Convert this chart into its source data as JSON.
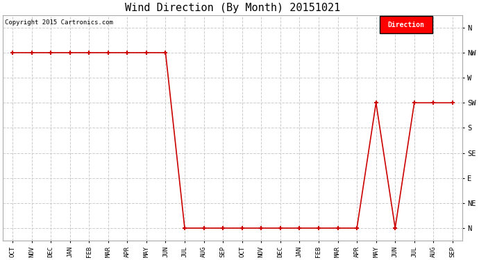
{
  "title": "Wind Direction (By Month) 20151021",
  "copyright_text": "Copyright 2015 Cartronics.com",
  "legend_label": "Direction",
  "legend_bg": "#ff0000",
  "legend_text_color": "#ffffff",
  "x_labels": [
    "OCT",
    "NOV",
    "DEC",
    "JAN",
    "FEB",
    "MAR",
    "APR",
    "MAY",
    "JUN",
    "JUL",
    "AUG",
    "SEP",
    "OCT",
    "NOV",
    "DEC",
    "JAN",
    "FEB",
    "MAR",
    "APR",
    "MAY",
    "JUN",
    "JUL",
    "AUG",
    "SEP"
  ],
  "y_tick_labels": [
    "N",
    "NE",
    "E",
    "SE",
    "S",
    "SW",
    "W",
    "NW",
    "N"
  ],
  "y_tick_values": [
    0,
    1,
    2,
    3,
    4,
    5,
    6,
    7,
    8
  ],
  "data_x": [
    0,
    1,
    2,
    3,
    4,
    5,
    6,
    7,
    8,
    9,
    10,
    11,
    12,
    13,
    14,
    15,
    16,
    17,
    18,
    19,
    20,
    21,
    22,
    23
  ],
  "data_y": [
    7,
    7,
    7,
    7,
    7,
    7,
    7,
    7,
    7,
    0,
    0,
    0,
    0,
    0,
    0,
    0,
    0,
    0,
    0,
    5,
    0,
    5,
    5,
    5
  ],
  "line_color": "#cc0000",
  "marker": "+",
  "marker_size": 5,
  "marker_linewidth": 1.5,
  "line_width": 1.2,
  "grid_color": "#cccccc",
  "grid_linestyle": "--",
  "bg_color": "#ffffff",
  "plot_bg_color": "#ffffff",
  "figsize": [
    6.9,
    3.75
  ],
  "dpi": 100
}
